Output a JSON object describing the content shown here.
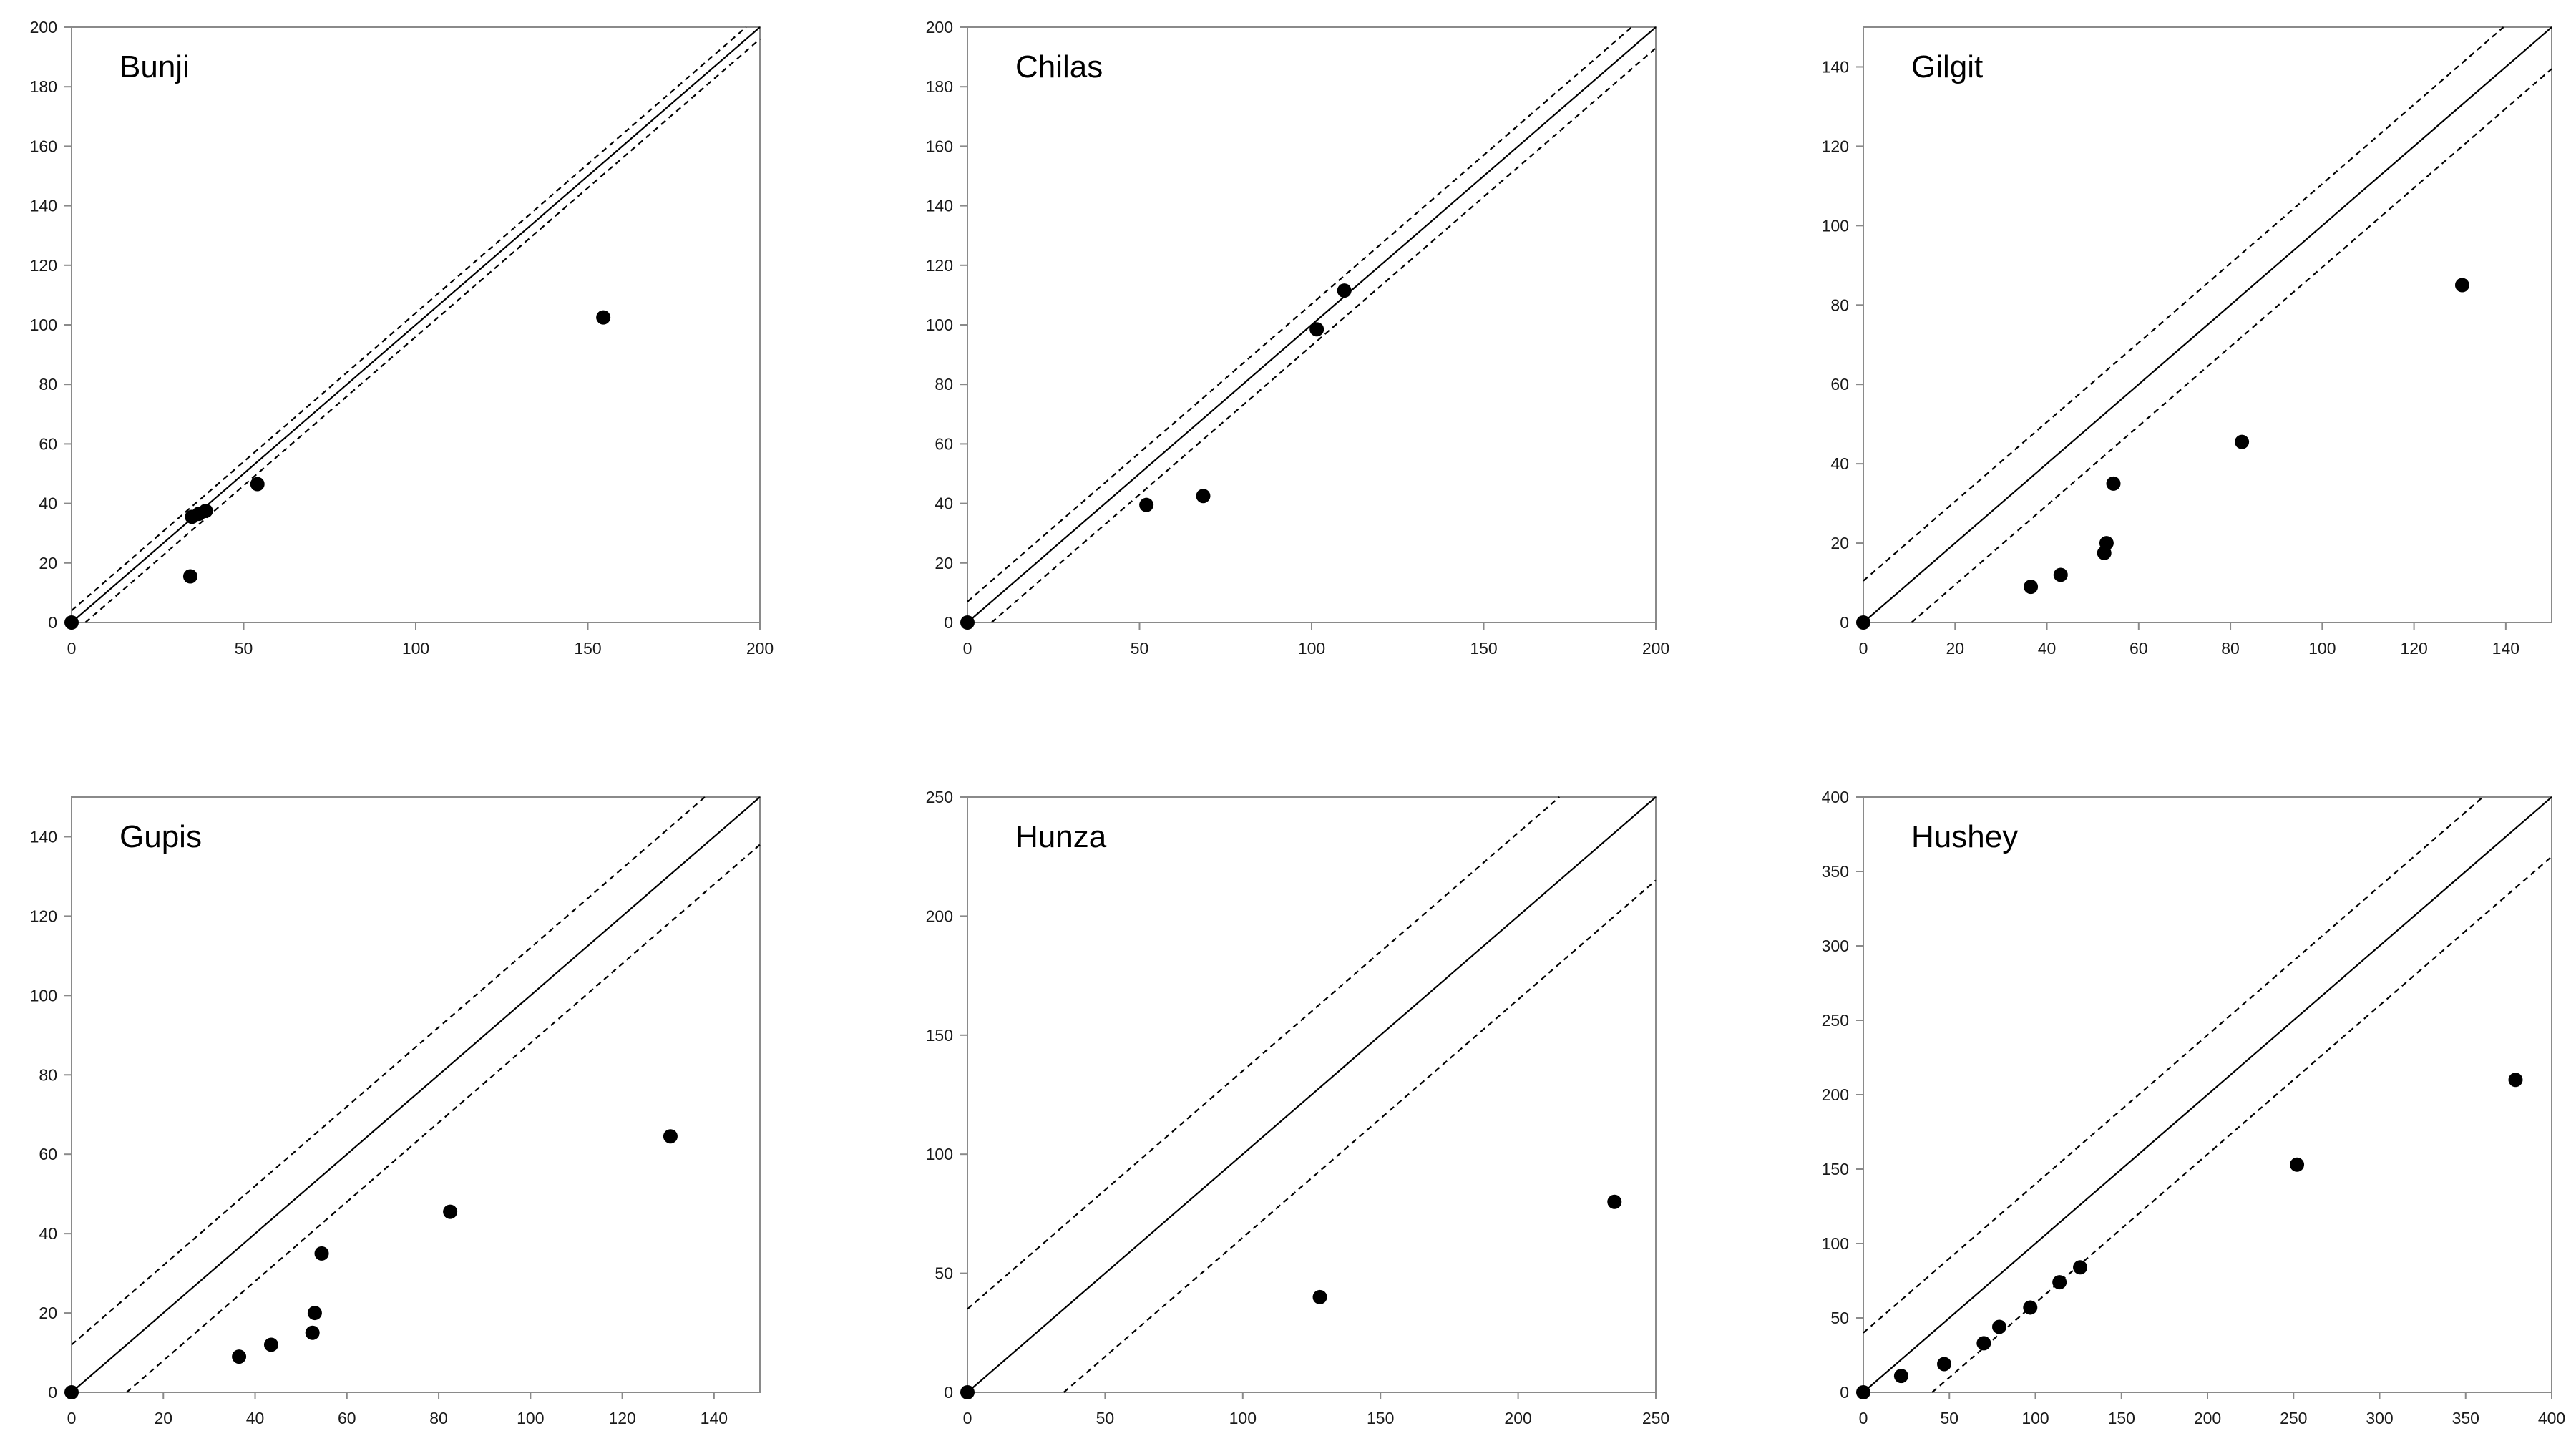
{
  "colors": {
    "axis": "#8a8a8a",
    "line": "#000000",
    "point": "#000000"
  },
  "chart_data": [
    {
      "type": "scatter",
      "title": "Bunji",
      "xlim": [
        0,
        200
      ],
      "ylim": [
        0,
        200
      ],
      "xticks": [
        0,
        50,
        100,
        150,
        200
      ],
      "yticks": [
        0,
        20,
        40,
        60,
        80,
        100,
        120,
        140,
        160,
        180,
        200
      ],
      "reference_line": "1:1",
      "band_offset": 4,
      "points": [
        [
          0,
          0
        ],
        [
          34.5,
          15.5
        ],
        [
          35,
          35.5
        ],
        [
          37,
          36.5
        ],
        [
          39,
          37.5
        ],
        [
          54,
          46.5
        ],
        [
          154.5,
          102.5
        ]
      ]
    },
    {
      "type": "scatter",
      "title": "Chilas",
      "xlim": [
        0,
        200
      ],
      "ylim": [
        0,
        200
      ],
      "xticks": [
        0,
        50,
        100,
        150,
        200
      ],
      "yticks": [
        0,
        20,
        40,
        60,
        80,
        100,
        120,
        140,
        160,
        180,
        200
      ],
      "reference_line": "1:1",
      "band_offset": 7,
      "points": [
        [
          0,
          0
        ],
        [
          52,
          39.5
        ],
        [
          68.5,
          42.5
        ],
        [
          101.5,
          98.5
        ],
        [
          109.5,
          111.5
        ]
      ]
    },
    {
      "type": "scatter",
      "title": "Gilgit",
      "xlim": [
        0,
        150
      ],
      "ylim": [
        0,
        150
      ],
      "xticks": [
        0,
        20,
        40,
        60,
        80,
        100,
        120,
        140
      ],
      "yticks": [
        0,
        20,
        40,
        60,
        80,
        100,
        120,
        140
      ],
      "reference_line": "1:1",
      "band_offset": 10.5,
      "points": [
        [
          0,
          0
        ],
        [
          36.5,
          9
        ],
        [
          43,
          12
        ],
        [
          52.5,
          17.5
        ],
        [
          53,
          20
        ],
        [
          54.5,
          35
        ],
        [
          82.5,
          45.5
        ],
        [
          130.5,
          85
        ]
      ]
    },
    {
      "type": "scatter",
      "title": "Gupis",
      "xlim": [
        0,
        150
      ],
      "ylim": [
        0,
        150
      ],
      "xticks": [
        0,
        20,
        40,
        60,
        80,
        100,
        120,
        140
      ],
      "yticks": [
        0,
        20,
        40,
        60,
        80,
        100,
        120,
        140
      ],
      "reference_line": "1:1",
      "band_offset": 12,
      "points": [
        [
          0,
          0
        ],
        [
          36.5,
          9
        ],
        [
          43.5,
          12
        ],
        [
          52.5,
          15
        ],
        [
          53,
          20
        ],
        [
          54.5,
          35
        ],
        [
          82.5,
          45.5
        ],
        [
          130.5,
          64.5
        ]
      ]
    },
    {
      "type": "scatter",
      "title": "Hunza",
      "xlim": [
        0,
        250
      ],
      "ylim": [
        0,
        250
      ],
      "xticks": [
        0,
        50,
        100,
        150,
        200,
        250
      ],
      "yticks": [
        0,
        50,
        100,
        150,
        200,
        250
      ],
      "reference_line": "1:1",
      "band_offset": 35,
      "points": [
        [
          0,
          0
        ],
        [
          128,
          40
        ],
        [
          235,
          80
        ]
      ]
    },
    {
      "type": "scatter",
      "title": "Hushey",
      "xlim": [
        0,
        400
      ],
      "ylim": [
        0,
        400
      ],
      "xticks": [
        0,
        50,
        100,
        150,
        200,
        250,
        300,
        350,
        400
      ],
      "yticks": [
        0,
        50,
        100,
        150,
        200,
        250,
        300,
        350,
        400
      ],
      "reference_line": "1:1",
      "band_offset": 40,
      "points": [
        [
          0,
          0
        ],
        [
          22,
          11
        ],
        [
          47,
          19
        ],
        [
          70,
          33
        ],
        [
          79,
          44
        ],
        [
          97,
          57
        ],
        [
          114,
          74
        ],
        [
          126,
          84
        ],
        [
          252,
          153
        ],
        [
          379,
          210
        ]
      ]
    }
  ]
}
